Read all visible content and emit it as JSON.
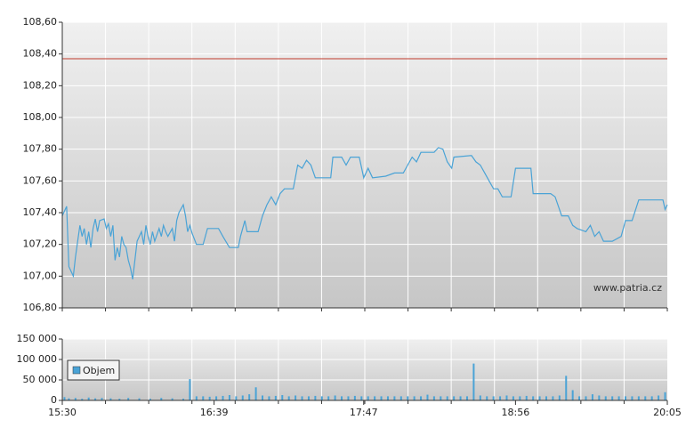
{
  "chart_data": [
    {
      "type": "line",
      "ylim": [
        106.8,
        108.6
      ],
      "yticks": [
        {
          "value": 106.8,
          "label": "106,80"
        },
        {
          "value": 107.0,
          "label": "107,00"
        },
        {
          "value": 107.2,
          "label": "107,20"
        },
        {
          "value": 107.4,
          "label": "107,40"
        },
        {
          "value": 107.6,
          "label": "107,60"
        },
        {
          "value": 107.8,
          "label": "107,80"
        },
        {
          "value": 108.0,
          "label": "108,00"
        },
        {
          "value": 108.2,
          "label": "108,20"
        },
        {
          "value": 108.4,
          "label": "108,40"
        },
        {
          "value": 108.6,
          "label": "108,60"
        }
      ],
      "grid": true,
      "reference_line": {
        "value": 108.37,
        "color": "#c0392b"
      },
      "watermark": "www.patria.cz",
      "x": [
        "15:30",
        "15:32",
        "15:33",
        "15:35",
        "15:36",
        "15:38",
        "15:39",
        "15:40",
        "15:41",
        "15:42",
        "15:43",
        "15:44",
        "15:45",
        "15:46",
        "15:47",
        "15:49",
        "15:50",
        "15:51",
        "15:52",
        "15:53",
        "15:54",
        "15:55",
        "15:56",
        "15:57",
        "15:58",
        "15:59",
        "16:00",
        "16:01",
        "16:02",
        "16:03",
        "16:04",
        "16:06",
        "16:07",
        "16:08",
        "16:09",
        "16:10",
        "16:11",
        "16:12",
        "16:14",
        "16:15",
        "16:16",
        "16:17",
        "16:18",
        "16:20",
        "16:21",
        "16:22",
        "16:23",
        "16:25",
        "16:26",
        "16:27",
        "16:28",
        "16:29",
        "16:31",
        "16:34",
        "16:36",
        "16:41",
        "16:43",
        "16:46",
        "16:50",
        "16:51",
        "16:53",
        "16:54",
        "16:59",
        "17:01",
        "17:03",
        "17:05",
        "17:07",
        "17:09",
        "17:11",
        "17:15",
        "17:17",
        "17:19",
        "17:21",
        "17:23",
        "17:25",
        "17:32",
        "17:33",
        "17:37",
        "17:39",
        "17:41",
        "17:45",
        "17:47",
        "17:49",
        "17:51",
        "17:57",
        "18:01",
        "18:05",
        "18:07",
        "18:09",
        "18:11",
        "18:13",
        "18:19",
        "18:21",
        "18:23",
        "18:25",
        "18:27",
        "18:28",
        "18:36",
        "18:38",
        "18:40",
        "18:42",
        "18:44",
        "18:46",
        "18:48",
        "18:50",
        "18:54",
        "18:56",
        "19:03",
        "19:04",
        "19:12",
        "19:14",
        "19:17",
        "19:20",
        "19:22",
        "19:24",
        "19:28",
        "19:30",
        "19:32",
        "19:34",
        "19:36",
        "19:40",
        "19:44",
        "19:46",
        "19:49",
        "19:52",
        "20:03",
        "20:04",
        "20:05"
      ],
      "series": [
        {
          "color": "#4aa3d6",
          "values": [
            107.38,
            107.44,
            107.06,
            107.0,
            107.12,
            107.32,
            107.25,
            107.3,
            107.2,
            107.28,
            107.18,
            107.3,
            107.36,
            107.28,
            107.35,
            107.36,
            107.3,
            107.33,
            107.25,
            107.32,
            107.1,
            107.18,
            107.12,
            107.25,
            107.2,
            107.18,
            107.1,
            107.05,
            106.98,
            107.1,
            107.22,
            107.28,
            107.2,
            107.32,
            107.25,
            107.2,
            107.28,
            107.22,
            107.3,
            107.25,
            107.32,
            107.28,
            107.25,
            107.3,
            107.22,
            107.35,
            107.4,
            107.45,
            107.38,
            107.28,
            107.32,
            107.27,
            107.2,
            107.2,
            107.3,
            107.3,
            107.25,
            107.18,
            107.18,
            107.25,
            107.35,
            107.28,
            107.28,
            107.38,
            107.45,
            107.5,
            107.45,
            107.52,
            107.55,
            107.55,
            107.7,
            107.68,
            107.73,
            107.7,
            107.62,
            107.62,
            107.75,
            107.75,
            107.7,
            107.75,
            107.75,
            107.62,
            107.68,
            107.62,
            107.63,
            107.65,
            107.65,
            107.7,
            107.75,
            107.72,
            107.78,
            107.78,
            107.81,
            107.8,
            107.72,
            107.68,
            107.75,
            107.76,
            107.72,
            107.7,
            107.65,
            107.6,
            107.55,
            107.55,
            107.5,
            107.5,
            107.68,
            107.68,
            107.52,
            107.52,
            107.5,
            107.38,
            107.38,
            107.32,
            107.3,
            107.28,
            107.32,
            107.25,
            107.28,
            107.22,
            107.22,
            107.25,
            107.35,
            107.35,
            107.48,
            107.48,
            107.42,
            107.45
          ]
        }
      ]
    },
    {
      "type": "bar",
      "xlim": [
        "15:30",
        "20:05"
      ],
      "xticks": [
        "15:30",
        "16:39",
        "17:47",
        "18:56",
        "20:05"
      ],
      "ylim": [
        0,
        150000
      ],
      "yticks": [
        0,
        {
          "value": 50000,
          "label": "50 000"
        },
        {
          "value": 100000,
          "label": "100 000"
        },
        {
          "value": 150000,
          "label": "150 000"
        }
      ],
      "grid": true,
      "legend": "top-left",
      "x": [
        "15:31",
        "15:33",
        "15:36",
        "15:39",
        "15:42",
        "15:45",
        "15:48",
        "15:52",
        "15:56",
        "16:00",
        "16:05",
        "16:10",
        "16:15",
        "16:20",
        "16:25",
        "16:28",
        "16:31",
        "16:34",
        "16:37",
        "16:40",
        "16:43",
        "16:46",
        "16:49",
        "16:52",
        "16:55",
        "16:58",
        "17:01",
        "17:04",
        "17:07",
        "17:10",
        "17:13",
        "17:16",
        "17:19",
        "17:22",
        "17:25",
        "17:28",
        "17:31",
        "17:34",
        "17:37",
        "17:40",
        "17:43",
        "17:46",
        "17:49",
        "17:52",
        "17:55",
        "17:58",
        "18:01",
        "18:04",
        "18:07",
        "18:10",
        "18:13",
        "18:16",
        "18:19",
        "18:22",
        "18:25",
        "18:28",
        "18:31",
        "18:34",
        "18:37",
        "18:40",
        "18:43",
        "18:46",
        "18:49",
        "18:52",
        "18:55",
        "18:58",
        "19:01",
        "19:04",
        "19:07",
        "19:10",
        "19:13",
        "19:16",
        "19:19",
        "19:22",
        "19:25",
        "19:28",
        "19:31",
        "19:34",
        "19:37",
        "19:40",
        "19:43",
        "19:46",
        "19:49",
        "19:52",
        "19:55",
        "19:58",
        "20:01",
        "20:04"
      ],
      "series": [
        {
          "name": "Objem",
          "color": "#4aa3d6",
          "values": [
            8000,
            5000,
            6000,
            4000,
            7000,
            5000,
            6000,
            5000,
            4000,
            6000,
            5000,
            4000,
            6000,
            5000,
            4000,
            52000,
            10000,
            10000,
            9000,
            10000,
            11000,
            13000,
            10000,
            12000,
            15000,
            32000,
            12000,
            10000,
            11000,
            13000,
            10000,
            12000,
            10000,
            10000,
            11000,
            10000,
            10000,
            12000,
            10000,
            10000,
            11000,
            10000,
            10000,
            10000,
            10000,
            10000,
            10000,
            10000,
            10000,
            10000,
            10000,
            14000,
            10000,
            10000,
            10000,
            10000,
            10000,
            10000,
            90000,
            12000,
            10000,
            10000,
            10000,
            12000,
            10000,
            10000,
            11000,
            10000,
            10000,
            10000,
            10000,
            12000,
            60000,
            25000,
            10000,
            10000,
            15000,
            12000,
            10000,
            10000,
            10000,
            10000,
            10000,
            10000,
            10000,
            10000,
            12000,
            20000
          ]
        }
      ]
    }
  ]
}
